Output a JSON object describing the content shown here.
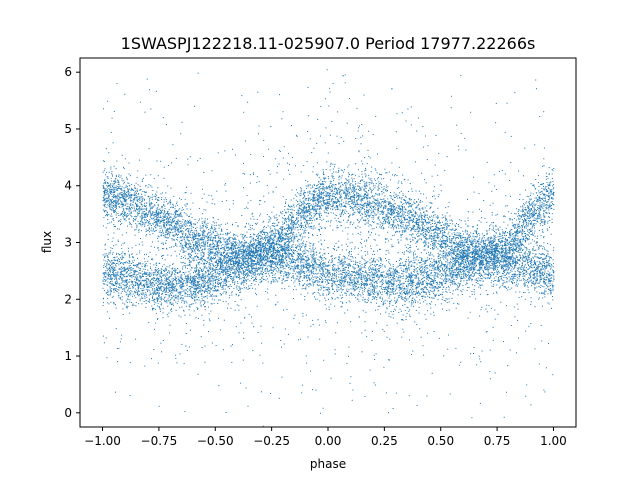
{
  "chart_data": {
    "type": "scatter",
    "title": "1SWASPJ122218.11-025907.0 Period 17977.22266s",
    "xlabel": "phase",
    "ylabel": "flux",
    "xlim": [
      -1.1,
      1.1
    ],
    "ylim": [
      -0.25,
      6.25
    ],
    "xticks": [
      -1.0,
      -0.75,
      -0.5,
      -0.25,
      0.0,
      0.25,
      0.5,
      0.75,
      1.0
    ],
    "xtick_labels": [
      "−1.00",
      "−0.75",
      "−0.50",
      "−0.25",
      "0.00",
      "0.25",
      "0.50",
      "0.75",
      "1.00"
    ],
    "yticks": [
      0,
      1,
      2,
      3,
      4,
      5,
      6
    ],
    "ytick_labels": [
      "0",
      "1",
      "2",
      "3",
      "4",
      "5",
      "6"
    ],
    "grid": false,
    "marker_color": "#1f77b4",
    "series": [
      {
        "description": "upper sinusoidal band",
        "points": [
          [
            -1.0,
            3.85
          ],
          [
            -0.9,
            3.75
          ],
          [
            -0.8,
            3.55
          ],
          [
            -0.7,
            3.35
          ],
          [
            -0.6,
            3.1
          ],
          [
            -0.5,
            2.9
          ],
          [
            -0.4,
            2.75
          ],
          [
            -0.3,
            2.8
          ],
          [
            -0.2,
            3.1
          ],
          [
            -0.1,
            3.6
          ],
          [
            0.0,
            3.85
          ],
          [
            0.1,
            3.8
          ],
          [
            0.2,
            3.7
          ],
          [
            0.3,
            3.55
          ],
          [
            0.4,
            3.35
          ],
          [
            0.5,
            3.1
          ],
          [
            0.6,
            2.85
          ],
          [
            0.7,
            2.75
          ],
          [
            0.8,
            2.95
          ],
          [
            0.9,
            3.5
          ],
          [
            1.0,
            3.85
          ]
        ]
      },
      {
        "description": "lower band",
        "points": [
          [
            -1.0,
            2.45
          ],
          [
            -0.9,
            2.4
          ],
          [
            -0.8,
            2.3
          ],
          [
            -0.7,
            2.25
          ],
          [
            -0.6,
            2.3
          ],
          [
            -0.5,
            2.4
          ],
          [
            -0.4,
            2.6
          ],
          [
            -0.3,
            2.75
          ],
          [
            -0.2,
            2.75
          ],
          [
            -0.1,
            2.6
          ],
          [
            0.0,
            2.45
          ],
          [
            0.1,
            2.4
          ],
          [
            0.2,
            2.35
          ],
          [
            0.3,
            2.3
          ],
          [
            0.4,
            2.35
          ],
          [
            0.5,
            2.45
          ],
          [
            0.6,
            2.6
          ],
          [
            0.7,
            2.75
          ],
          [
            0.8,
            2.7
          ],
          [
            0.9,
            2.55
          ],
          [
            1.0,
            2.45
          ]
        ]
      }
    ]
  }
}
